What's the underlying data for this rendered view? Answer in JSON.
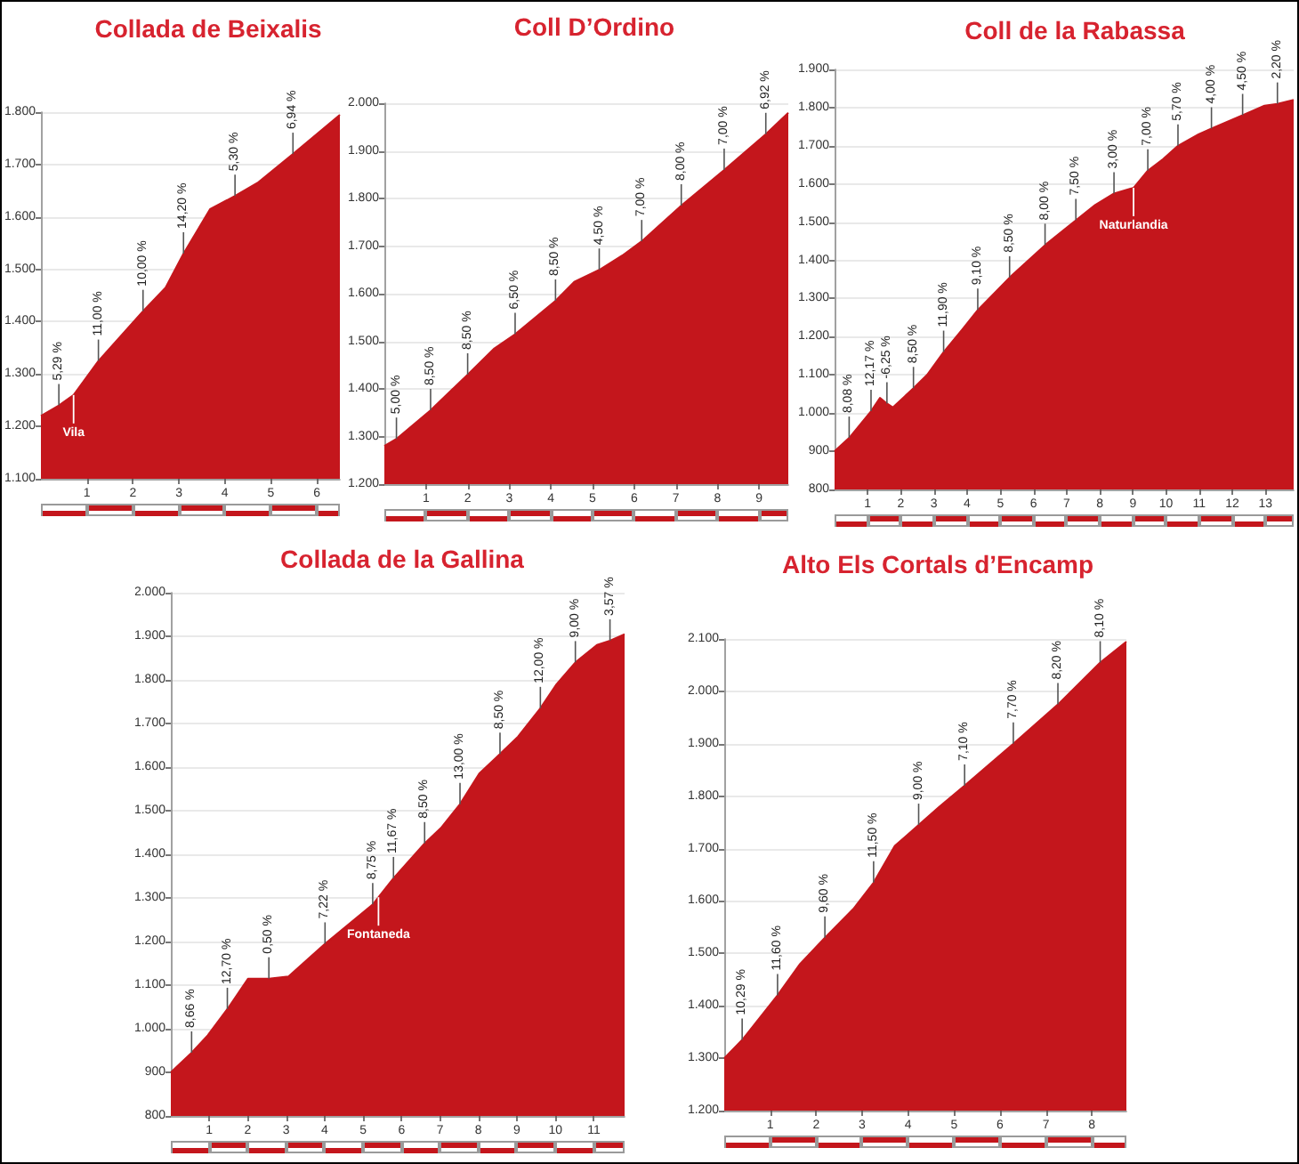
{
  "chart_data": [
    {
      "type": "area",
      "title": "Collada de Beixalis",
      "color": "#c4161c",
      "x": [
        0,
        0.39,
        0.71,
        1.25,
        2.22,
        2.71,
        3.1,
        3.68,
        4.22,
        4.71,
        5.48,
        6.5
      ],
      "values": [
        1220,
        1240,
        1260,
        1325,
        1420,
        1465,
        1530,
        1615,
        1640,
        1665,
        1720,
        1795
      ],
      "xlim": [
        0,
        6.5
      ],
      "xticks": [
        1,
        2,
        3,
        4,
        5,
        6
      ],
      "ylim": [
        1100,
        1800
      ],
      "yticks": [
        {
          "value": 1100,
          "label": "1.100"
        },
        {
          "value": 1200,
          "label": "1.200"
        },
        {
          "value": 1300,
          "label": "1.300"
        },
        {
          "value": 1400,
          "label": "1.400"
        },
        {
          "value": 1500,
          "label": "1.500"
        },
        {
          "value": 1600,
          "label": "1.600"
        },
        {
          "value": 1700,
          "label": "1.700"
        },
        {
          "value": 1800,
          "label": "1.800"
        }
      ],
      "grid": "y",
      "ref_lines": [
        {
          "axis": "x",
          "value": 0.71,
          "label": "Vila",
          "color": "#ffffff"
        }
      ],
      "annotations": [
        {
          "text": "5,29 %",
          "x": 0.39,
          "y": 1240
        },
        {
          "text": "11,00 %",
          "x": 1.25,
          "y": 1325
        },
        {
          "text": "10,00 %",
          "x": 2.22,
          "y": 1420
        },
        {
          "text": "14,20 %",
          "x": 3.1,
          "y": 1530
        },
        {
          "text": "5,30 %",
          "x": 4.22,
          "y": 1640
        },
        {
          "text": "6,94 %",
          "x": 5.48,
          "y": 1720
        }
      ]
    },
    {
      "type": "area",
      "title": "Coll D’Ordino",
      "color": "#c4161c",
      "x": [
        0,
        0.29,
        1.11,
        2.0,
        2.64,
        3.14,
        4.11,
        4.56,
        5.16,
        5.71,
        6.18,
        7.13,
        8.16,
        9.16,
        9.7
      ],
      "values": [
        1280,
        1295,
        1355,
        1430,
        1485,
        1515,
        1585,
        1625,
        1650,
        1680,
        1710,
        1785,
        1860,
        1935,
        1980
      ],
      "xlim": [
        0,
        9.7
      ],
      "xticks": [
        1,
        2,
        3,
        4,
        5,
        6,
        7,
        8,
        9
      ],
      "ylim": [
        1200,
        2000
      ],
      "yticks": [
        {
          "value": 1200,
          "label": "1.200"
        },
        {
          "value": 1300,
          "label": "1.300"
        },
        {
          "value": 1400,
          "label": "1.400"
        },
        {
          "value": 1500,
          "label": "1.500"
        },
        {
          "value": 1600,
          "label": "1.600"
        },
        {
          "value": 1700,
          "label": "1.700"
        },
        {
          "value": 1800,
          "label": "1.800"
        },
        {
          "value": 1900,
          "label": "1.900"
        },
        {
          "value": 2000,
          "label": "2.000"
        }
      ],
      "grid": "y",
      "annotations": [
        {
          "text": "5,00 %",
          "x": 0.29,
          "y": 1295
        },
        {
          "text": "8,50 %",
          "x": 1.11,
          "y": 1355
        },
        {
          "text": "8,50 %",
          "x": 2.0,
          "y": 1430
        },
        {
          "text": "6,50 %",
          "x": 3.14,
          "y": 1515
        },
        {
          "text": "8,50 %",
          "x": 4.11,
          "y": 1585
        },
        {
          "text": "4,50 %",
          "x": 5.16,
          "y": 1650
        },
        {
          "text": "7,00 %",
          "x": 6.18,
          "y": 1710
        },
        {
          "text": "8,00 %",
          "x": 7.13,
          "y": 1785
        },
        {
          "text": "7,00 %",
          "x": 8.16,
          "y": 1860
        },
        {
          "text": "6,92 %",
          "x": 9.16,
          "y": 1935
        }
      ]
    },
    {
      "type": "area",
      "title": "Coll de la Rabassa",
      "color": "#c4161c",
      "x": [
        0,
        0.44,
        1.1,
        1.37,
        1.58,
        1.76,
        2.38,
        2.79,
        3.29,
        3.86,
        4.32,
        5.28,
        6.35,
        7.28,
        7.86,
        8.43,
        9.02,
        9.45,
        9.91,
        10.36,
        10.98,
        11.37,
        12.31,
        12.97,
        13.36,
        13.85
      ],
      "values": [
        900,
        935,
        1005,
        1040,
        1025,
        1015,
        1065,
        1100,
        1160,
        1220,
        1270,
        1355,
        1440,
        1505,
        1545,
        1575,
        1590,
        1635,
        1665,
        1700,
        1730,
        1745,
        1780,
        1805,
        1810,
        1820
      ],
      "xlim": [
        0,
        13.85
      ],
      "xticks": [
        1,
        2,
        3,
        4,
        5,
        6,
        7,
        8,
        9,
        10,
        11,
        12,
        13
      ],
      "ylim": [
        800,
        1900
      ],
      "yticks": [
        {
          "value": 800,
          "label": "800"
        },
        {
          "value": 900,
          "label": "900"
        },
        {
          "value": 1000,
          "label": "1.000"
        },
        {
          "value": 1100,
          "label": "1.100"
        },
        {
          "value": 1200,
          "label": "1.200"
        },
        {
          "value": 1300,
          "label": "1.300"
        },
        {
          "value": 1400,
          "label": "1.400"
        },
        {
          "value": 1500,
          "label": "1.500"
        },
        {
          "value": 1600,
          "label": "1.600"
        },
        {
          "value": 1700,
          "label": "1.700"
        },
        {
          "value": 1800,
          "label": "1.800"
        },
        {
          "value": 1900,
          "label": "1.900"
        }
      ],
      "grid": "y",
      "ref_lines": [
        {
          "axis": "x",
          "value": 9.02,
          "label": "Naturlandia",
          "color": "#ffffff"
        }
      ],
      "annotations": [
        {
          "text": "8,08 %",
          "x": 0.44,
          "y": 935
        },
        {
          "text": "12,17 %",
          "x": 1.1,
          "y": 1005
        },
        {
          "text": "-6,25 %",
          "x": 1.58,
          "y": 1025
        },
        {
          "text": "8,50 %",
          "x": 2.38,
          "y": 1065
        },
        {
          "text": "11,90 %",
          "x": 3.29,
          "y": 1160
        },
        {
          "text": "9,10 %",
          "x": 4.32,
          "y": 1270
        },
        {
          "text": "8,50 %",
          "x": 5.28,
          "y": 1355
        },
        {
          "text": "8,00 %",
          "x": 6.35,
          "y": 1440
        },
        {
          "text": "7,50 %",
          "x": 7.28,
          "y": 1505
        },
        {
          "text": "3,00 %",
          "x": 8.43,
          "y": 1575
        },
        {
          "text": "7,00 %",
          "x": 9.45,
          "y": 1635
        },
        {
          "text": "5,70 %",
          "x": 10.36,
          "y": 1700
        },
        {
          "text": "4,00 %",
          "x": 11.37,
          "y": 1745
        },
        {
          "text": "4,50 %",
          "x": 12.31,
          "y": 1780
        },
        {
          "text": "2,20 %",
          "x": 13.36,
          "y": 1810
        }
      ]
    },
    {
      "type": "area",
      "title": "Collada de la Gallina",
      "color": "#c4161c",
      "x": [
        0,
        0.54,
        0.96,
        1.47,
        2.01,
        2.55,
        3.06,
        4.01,
        5.25,
        5.79,
        6.6,
        7.02,
        7.52,
        8.02,
        8.56,
        9.03,
        9.61,
        10.03,
        10.52,
        11.08,
        11.42,
        11.8
      ],
      "values": [
        900,
        945,
        985,
        1045,
        1115,
        1115,
        1120,
        1195,
        1285,
        1345,
        1425,
        1460,
        1515,
        1585,
        1630,
        1670,
        1735,
        1790,
        1840,
        1880,
        1890,
        1905
      ],
      "xlim": [
        0,
        11.8
      ],
      "xticks": [
        1,
        2,
        3,
        4,
        5,
        6,
        7,
        8,
        9,
        10,
        11
      ],
      "ylim": [
        800,
        2000
      ],
      "yticks": [
        {
          "value": 800,
          "label": "800"
        },
        {
          "value": 900,
          "label": "900"
        },
        {
          "value": 1000,
          "label": "1.000"
        },
        {
          "value": 1100,
          "label": "1.100"
        },
        {
          "value": 1200,
          "label": "1.200"
        },
        {
          "value": 1300,
          "label": "1.300"
        },
        {
          "value": 1400,
          "label": "1.400"
        },
        {
          "value": 1500,
          "label": "1.500"
        },
        {
          "value": 1600,
          "label": "1.600"
        },
        {
          "value": 1700,
          "label": "1.700"
        },
        {
          "value": 1800,
          "label": "1.800"
        },
        {
          "value": 1900,
          "label": "1.900"
        },
        {
          "value": 2000,
          "label": "2.000"
        }
      ],
      "grid": "y",
      "ref_lines": [
        {
          "axis": "x",
          "value": 5.4,
          "label": "Fontaneda",
          "color": "#ffffff"
        }
      ],
      "annotations": [
        {
          "text": "8,66 %",
          "x": 0.54,
          "y": 945
        },
        {
          "text": "12,70 %",
          "x": 1.47,
          "y": 1045
        },
        {
          "text": "0,50 %",
          "x": 2.55,
          "y": 1115
        },
        {
          "text": "7,22 %",
          "x": 4.01,
          "y": 1195
        },
        {
          "text": "8,75 %",
          "x": 5.25,
          "y": 1285
        },
        {
          "text": "11,67 %",
          "x": 5.79,
          "y": 1345
        },
        {
          "text": "8,50 %",
          "x": 6.6,
          "y": 1425
        },
        {
          "text": "13,00 %",
          "x": 7.52,
          "y": 1515
        },
        {
          "text": "8,50 %",
          "x": 8.56,
          "y": 1630
        },
        {
          "text": "12,00 %",
          "x": 9.61,
          "y": 1735
        },
        {
          "text": "9,00 %",
          "x": 10.52,
          "y": 1840
        },
        {
          "text": "3,57 %",
          "x": 11.42,
          "y": 1890
        }
      ]
    },
    {
      "type": "area",
      "title": "Alto Els Cortals d’Encamp",
      "color": "#c4161c",
      "x": [
        0,
        0.39,
        1.16,
        1.65,
        2.19,
        2.81,
        3.25,
        3.71,
        4.23,
        4.68,
        5.23,
        6.29,
        7.26,
        8.18,
        8.75
      ],
      "values": [
        1300,
        1335,
        1420,
        1480,
        1530,
        1585,
        1635,
        1705,
        1745,
        1780,
        1820,
        1900,
        1975,
        2055,
        2095
      ],
      "xlim": [
        0,
        8.75
      ],
      "xticks": [
        1,
        2,
        3,
        4,
        5,
        6,
        7,
        8
      ],
      "ylim": [
        1200,
        2100
      ],
      "yticks": [
        {
          "value": 1200,
          "label": "1.200"
        },
        {
          "value": 1300,
          "label": "1.300"
        },
        {
          "value": 1400,
          "label": "1.400"
        },
        {
          "value": 1500,
          "label": "1.500"
        },
        {
          "value": 1600,
          "label": "1.600"
        },
        {
          "value": 1700,
          "label": "1.700"
        },
        {
          "value": 1800,
          "label": "1.800"
        },
        {
          "value": 1900,
          "label": "1.900"
        },
        {
          "value": 2000,
          "label": "2.000"
        },
        {
          "value": 2100,
          "label": "2.100"
        }
      ],
      "grid": "y",
      "annotations": [
        {
          "text": "10,29 %",
          "x": 0.39,
          "y": 1335
        },
        {
          "text": "11,60 %",
          "x": 1.16,
          "y": 1420
        },
        {
          "text": "9,60 %",
          "x": 2.19,
          "y": 1530
        },
        {
          "text": "11,50 %",
          "x": 3.25,
          "y": 1635
        },
        {
          "text": "9,00 %",
          "x": 4.23,
          "y": 1745
        },
        {
          "text": "7,10 %",
          "x": 5.23,
          "y": 1820
        },
        {
          "text": "7,70 %",
          "x": 6.29,
          "y": 1900
        },
        {
          "text": "8,20 %",
          "x": 7.26,
          "y": 1975
        },
        {
          "text": "8,10 %",
          "x": 8.18,
          "y": 2055
        }
      ]
    }
  ]
}
